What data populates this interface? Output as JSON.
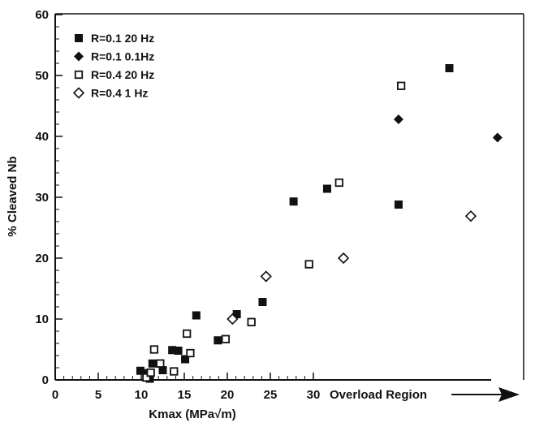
{
  "chart_data": {
    "type": "scatter",
    "xlabel": "Kmax (MPa√m)",
    "ylabel": "% Cleaved Nb",
    "xlim": [
      0,
      54
    ],
    "ylim": [
      0,
      60
    ],
    "xticks": [
      0,
      5,
      10,
      15,
      20,
      25,
      30
    ],
    "yticks": [
      0,
      10,
      20,
      30,
      40,
      50,
      60
    ],
    "grid": false,
    "legend_position": "top-left",
    "annotation": "Overload Region",
    "series": [
      {
        "name": "R=0.1  20 Hz",
        "marker": "filled-square",
        "points": [
          [
            9.9,
            1.5
          ],
          [
            10.6,
            1.1
          ],
          [
            11.0,
            0.2
          ],
          [
            11.3,
            2.7
          ],
          [
            12.5,
            1.6
          ],
          [
            13.6,
            4.9
          ],
          [
            14.3,
            4.8
          ],
          [
            15.1,
            3.4
          ],
          [
            16.4,
            10.6
          ],
          [
            18.9,
            6.5
          ],
          [
            21.1,
            10.8
          ],
          [
            24.1,
            12.8
          ],
          [
            27.7,
            29.3
          ],
          [
            31.6,
            31.4
          ],
          [
            39.9,
            28.8
          ],
          [
            45.8,
            51.2
          ]
        ]
      },
      {
        "name": "R=0.1  0.1Hz",
        "marker": "filled-diamond",
        "points": [
          [
            39.9,
            42.8
          ],
          [
            51.4,
            39.8
          ]
        ]
      },
      {
        "name": "R=0.4  20 Hz",
        "marker": "open-square",
        "points": [
          [
            10.6,
            0.4
          ],
          [
            11.1,
            1.2
          ],
          [
            11.5,
            5.0
          ],
          [
            12.2,
            2.7
          ],
          [
            13.8,
            1.4
          ],
          [
            15.3,
            7.6
          ],
          [
            15.7,
            4.4
          ],
          [
            19.8,
            6.7
          ],
          [
            22.8,
            9.5
          ],
          [
            29.5,
            19.0
          ],
          [
            33.0,
            32.4
          ],
          [
            40.2,
            48.3
          ]
        ]
      },
      {
        "name": "R=0.4   1 Hz",
        "marker": "open-diamond",
        "points": [
          [
            20.6,
            10.0
          ],
          [
            24.5,
            17.0
          ],
          [
            33.5,
            20.0
          ],
          [
            48.3,
            26.9
          ]
        ]
      }
    ]
  }
}
